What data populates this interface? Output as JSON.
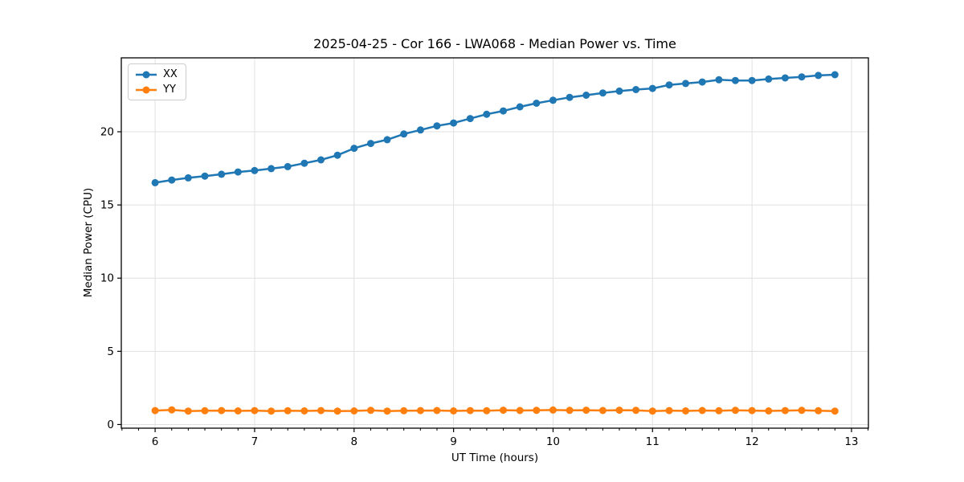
{
  "chart_data": {
    "type": "line",
    "title": "2025-04-25 - Cor 166 - LWA068 - Median Power vs. Time",
    "xlabel": "UT Time (hours)",
    "ylabel": "Median Power (CPU)",
    "xlim": [
      5.66,
      13.17
    ],
    "ylim": [
      -0.25,
      25.05
    ],
    "x_ticks": [
      6,
      7,
      8,
      9,
      10,
      11,
      12,
      13
    ],
    "y_ticks": [
      0,
      5,
      10,
      15,
      20
    ],
    "x_minor_tick_interval_hours": 0.1667,
    "grid": true,
    "grid_color": "#e0e0e0",
    "spine_color": "#000000",
    "background_color": "#ffffff",
    "legend_position": "upper left",
    "x": [
      6.0,
      6.167,
      6.333,
      6.5,
      6.667,
      6.833,
      7.0,
      7.167,
      7.333,
      7.5,
      7.667,
      7.833,
      8.0,
      8.167,
      8.333,
      8.5,
      8.667,
      8.833,
      9.0,
      9.167,
      9.333,
      9.5,
      9.667,
      9.833,
      10.0,
      10.167,
      10.333,
      10.5,
      10.667,
      10.833,
      11.0,
      11.167,
      11.333,
      11.5,
      11.667,
      11.833,
      12.0,
      12.167,
      12.333,
      12.5,
      12.667,
      12.833
    ],
    "series": [
      {
        "name": "XX",
        "color": "#1f77b4",
        "values": [
          16.52,
          16.7,
          16.85,
          16.97,
          17.1,
          17.25,
          17.35,
          17.48,
          17.62,
          17.85,
          18.08,
          18.4,
          18.87,
          19.2,
          19.46,
          19.85,
          20.12,
          20.4,
          20.6,
          20.9,
          21.2,
          21.42,
          21.7,
          21.95,
          22.15,
          22.35,
          22.5,
          22.65,
          22.78,
          22.88,
          22.96,
          23.2,
          23.3,
          23.4,
          23.55,
          23.5,
          23.5,
          23.6,
          23.68,
          23.75,
          23.85,
          23.9
        ]
      },
      {
        "name": "YY",
        "color": "#ff7f0e",
        "values": [
          0.95,
          1.0,
          0.92,
          0.94,
          0.95,
          0.93,
          0.95,
          0.92,
          0.94,
          0.93,
          0.95,
          0.92,
          0.93,
          0.97,
          0.92,
          0.94,
          0.95,
          0.96,
          0.93,
          0.95,
          0.94,
          0.98,
          0.96,
          0.97,
          0.99,
          0.97,
          0.98,
          0.96,
          0.98,
          0.97,
          0.92,
          0.95,
          0.93,
          0.96,
          0.94,
          0.97,
          0.95,
          0.93,
          0.95,
          0.97,
          0.94,
          0.92
        ]
      }
    ]
  }
}
